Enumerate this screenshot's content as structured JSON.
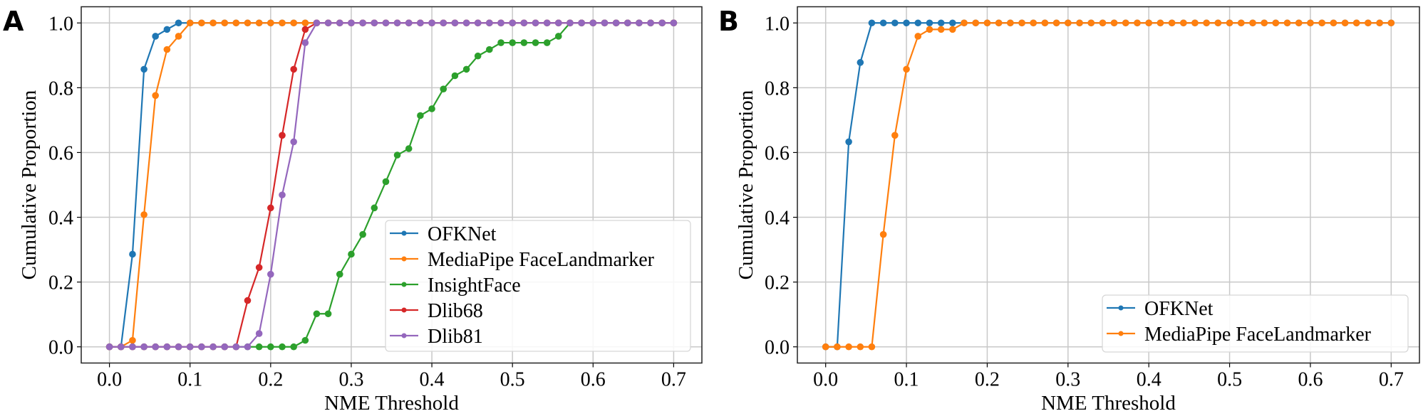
{
  "chart_data": [
    {
      "panel_label": "A",
      "type": "line",
      "xlabel": "NME Threshold",
      "ylabel": "Cumulative Proportion",
      "xlim": [
        -0.035,
        0.735
      ],
      "ylim": [
        -0.05,
        1.05
      ],
      "xticks": [
        "0.0",
        "0.1",
        "0.2",
        "0.3",
        "0.4",
        "0.5",
        "0.6",
        "0.7"
      ],
      "yticks": [
        "0.0",
        "0.2",
        "0.4",
        "0.6",
        "0.8",
        "1.0"
      ],
      "grid": true,
      "legend_position": "lower-right",
      "x": [
        0,
        0.0143,
        0.0286,
        0.0429,
        0.0571,
        0.0714,
        0.0857,
        0.1,
        0.1143,
        0.1286,
        0.1429,
        0.1571,
        0.1714,
        0.1857,
        0.2,
        0.2143,
        0.2286,
        0.2429,
        0.2571,
        0.2714,
        0.2857,
        0.3,
        0.3143,
        0.3286,
        0.3429,
        0.3571,
        0.3714,
        0.3857,
        0.4,
        0.4143,
        0.4286,
        0.4429,
        0.4571,
        0.4714,
        0.4857,
        0.5,
        0.5143,
        0.5286,
        0.5429,
        0.5571,
        0.5714,
        0.5857,
        0.6,
        0.6143,
        0.6286,
        0.6429,
        0.6571,
        0.6714,
        0.6857,
        0.7
      ],
      "series": [
        {
          "name": "OFKNet",
          "color": "#1f77b4",
          "values": [
            0,
            0,
            0.286,
            0.857,
            0.959,
            0.98,
            1,
            1,
            1,
            1,
            1,
            1,
            1,
            1,
            1,
            1,
            1,
            1,
            1,
            1,
            1,
            1,
            1,
            1,
            1,
            1,
            1,
            1,
            1,
            1,
            1,
            1,
            1,
            1,
            1,
            1,
            1,
            1,
            1,
            1,
            1,
            1,
            1,
            1,
            1,
            1,
            1,
            1,
            1,
            1
          ]
        },
        {
          "name": "MediaPipe FaceLandmarker",
          "color": "#ff7f0e",
          "values": [
            0,
            0,
            0.02,
            0.408,
            0.776,
            0.918,
            0.959,
            1,
            1,
            1,
            1,
            1,
            1,
            1,
            1,
            1,
            1,
            1,
            1,
            1,
            1,
            1,
            1,
            1,
            1,
            1,
            1,
            1,
            1,
            1,
            1,
            1,
            1,
            1,
            1,
            1,
            1,
            1,
            1,
            1,
            1,
            1,
            1,
            1,
            1,
            1,
            1,
            1,
            1,
            1
          ]
        },
        {
          "name": "InsightFace",
          "color": "#2ca02c",
          "values": [
            0,
            0,
            0,
            0,
            0,
            0,
            0,
            0,
            0,
            0,
            0,
            0,
            0,
            0,
            0,
            0,
            0,
            0.02,
            0.102,
            0.102,
            0.224,
            0.286,
            0.347,
            0.429,
            0.51,
            0.592,
            0.612,
            0.714,
            0.735,
            0.796,
            0.837,
            0.857,
            0.898,
            0.918,
            0.939,
            0.939,
            0.939,
            0.939,
            0.939,
            0.959,
            1,
            1,
            1,
            1,
            1,
            1,
            1,
            1,
            1,
            1
          ]
        },
        {
          "name": "Dlib68",
          "color": "#d62728",
          "values": [
            0,
            0,
            0,
            0,
            0,
            0,
            0,
            0,
            0,
            0,
            0,
            0,
            0.143,
            0.245,
            0.429,
            0.653,
            0.857,
            0.98,
            1,
            1,
            1,
            1,
            1,
            1,
            1,
            1,
            1,
            1,
            1,
            1,
            1,
            1,
            1,
            1,
            1,
            1,
            1,
            1,
            1,
            1,
            1,
            1,
            1,
            1,
            1,
            1,
            1,
            1,
            1,
            1
          ]
        },
        {
          "name": "Dlib81",
          "color": "#9467bd",
          "values": [
            0,
            0,
            0,
            0,
            0,
            0,
            0,
            0,
            0,
            0,
            0,
            0,
            0,
            0.041,
            0.224,
            0.469,
            0.633,
            0.939,
            1,
            1,
            1,
            1,
            1,
            1,
            1,
            1,
            1,
            1,
            1,
            1,
            1,
            1,
            1,
            1,
            1,
            1,
            1,
            1,
            1,
            1,
            1,
            1,
            1,
            1,
            1,
            1,
            1,
            1,
            1,
            1
          ]
        }
      ]
    },
    {
      "panel_label": "B",
      "type": "line",
      "xlabel": "NME Threshold",
      "ylabel": "Cumulative Proportion",
      "xlim": [
        -0.035,
        0.735
      ],
      "ylim": [
        -0.05,
        1.05
      ],
      "xticks": [
        "0.0",
        "0.1",
        "0.2",
        "0.3",
        "0.4",
        "0.5",
        "0.6",
        "0.7"
      ],
      "yticks": [
        "0.0",
        "0.2",
        "0.4",
        "0.6",
        "0.8",
        "1.0"
      ],
      "grid": true,
      "legend_position": "lower-right",
      "x": [
        0,
        0.0143,
        0.0286,
        0.0429,
        0.0571,
        0.0714,
        0.0857,
        0.1,
        0.1143,
        0.1286,
        0.1429,
        0.1571,
        0.1714,
        0.1857,
        0.2,
        0.2143,
        0.2286,
        0.2429,
        0.2571,
        0.2714,
        0.2857,
        0.3,
        0.3143,
        0.3286,
        0.3429,
        0.3571,
        0.3714,
        0.3857,
        0.4,
        0.4143,
        0.4286,
        0.4429,
        0.4571,
        0.4714,
        0.4857,
        0.5,
        0.5143,
        0.5286,
        0.5429,
        0.5571,
        0.5714,
        0.5857,
        0.6,
        0.6143,
        0.6286,
        0.6429,
        0.6571,
        0.6714,
        0.6857,
        0.7
      ],
      "series": [
        {
          "name": "OFKNet",
          "color": "#1f77b4",
          "values": [
            0,
            0,
            0.633,
            0.878,
            1,
            1,
            1,
            1,
            1,
            1,
            1,
            1,
            1,
            1,
            1,
            1,
            1,
            1,
            1,
            1,
            1,
            1,
            1,
            1,
            1,
            1,
            1,
            1,
            1,
            1,
            1,
            1,
            1,
            1,
            1,
            1,
            1,
            1,
            1,
            1,
            1,
            1,
            1,
            1,
            1,
            1,
            1,
            1,
            1,
            1
          ]
        },
        {
          "name": "MediaPipe FaceLandmarker",
          "color": "#ff7f0e",
          "values": [
            0,
            0,
            0,
            0,
            0,
            0.347,
            0.653,
            0.857,
            0.959,
            0.98,
            0.98,
            0.98,
            1,
            1,
            1,
            1,
            1,
            1,
            1,
            1,
            1,
            1,
            1,
            1,
            1,
            1,
            1,
            1,
            1,
            1,
            1,
            1,
            1,
            1,
            1,
            1,
            1,
            1,
            1,
            1,
            1,
            1,
            1,
            1,
            1,
            1,
            1,
            1,
            1,
            1
          ]
        }
      ]
    }
  ]
}
